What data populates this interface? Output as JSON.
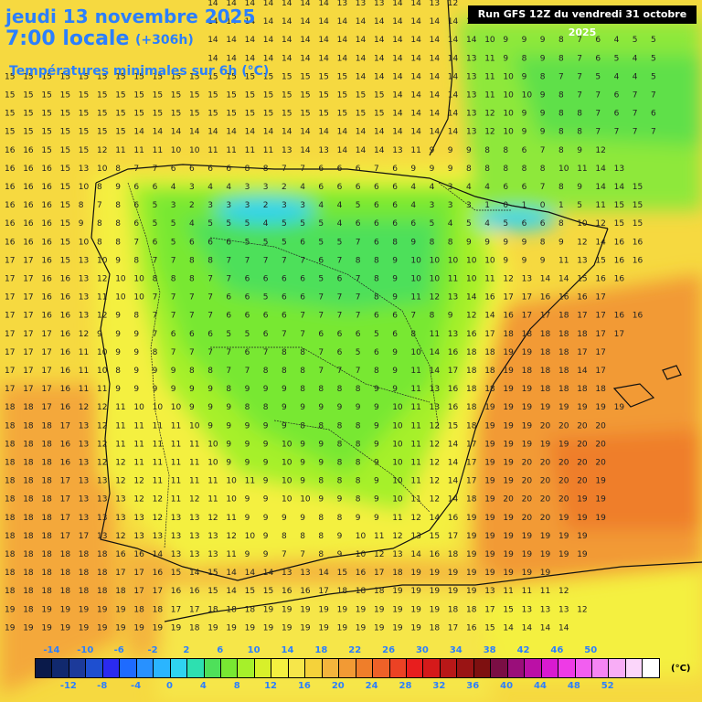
{
  "header": {
    "date": "jeudi 13 novembre 2025",
    "time": "7:00 locale",
    "offset": "(+306h)",
    "subtitle": "Températures minimales sur 6h (°C)",
    "run": "Run GFS 12Z du vendredi 31 octobre 2025"
  },
  "legend": {
    "unit": "(°C)",
    "top_labels": [
      "-14",
      "-10",
      "-6",
      "-2",
      "2",
      "6",
      "10",
      "14",
      "18",
      "22",
      "26",
      "30",
      "34",
      "38",
      "42",
      "46",
      "50"
    ],
    "bottom_labels": [
      "-12",
      "-8",
      "-4",
      "0",
      "4",
      "8",
      "12",
      "16",
      "20",
      "24",
      "28",
      "32",
      "36",
      "40",
      "44",
      "48",
      "52"
    ],
    "colors": [
      "#0a1a4a",
      "#11296e",
      "#1c3a9a",
      "#1e4fd0",
      "#2a2af0",
      "#1e6bff",
      "#2891ff",
      "#2ab5ff",
      "#2fd3f0",
      "#2de0b0",
      "#4ee05a",
      "#78e832",
      "#a6f02a",
      "#d8f02a",
      "#f4f040",
      "#f6e64a",
      "#f5d23a",
      "#f4b43c",
      "#f29a34",
      "#ef7e2a",
      "#ee6128",
      "#ec4224",
      "#e81e1e",
      "#d51a1a",
      "#b81818",
      "#9a1414",
      "#7e1010",
      "#7a0e44",
      "#9a0e7a",
      "#bb10a6",
      "#d91ad0",
      "#ee3ae6",
      "#f25ef0",
      "#f585f3",
      "#f8adf6",
      "#fbd6fa",
      "#ffffff"
    ]
  },
  "grid": {
    "rows": [
      "14 14 14 14 14 14 14 14 14 14 14 14 14 14 14 14 14 14 13 13 13 14 14 13 12 12 11 11 9 8 7 7 7 7 6 6 5 5",
      "14 14 14 14 14 14 14 14 14 14 14 14 14 14 14 14 14 14 14 14 14 14 14 14 14 12 11 9 9 9 8 6 4 7 5 6",
      "14 14 14 14 14 14 14 14 14 14 14 14 14 14 14 14 14 14 14 14 14 14 14 14 14 14 10 9 9 9 8 7 6 4 5 5",
      "15 15 15 14 14 14 14 14 14 14 14 14 14 14 14 14 14 14 14 14 14 14 14 14 14 13 11 9 8 9 8 7 6 5 4 5",
      "15 15 15 15 15 15 15 15 15 15 15 15 15 15 15 15 15 15 15 14 14 14 14 14 14 13 11 10 9 8 7 7 5 4 4 5",
      "15 15 15 15 15 15 15 15 15 15 15 15 15 15 15 15 15 15 15 15 15 14 14 14 14 13 11 10 10 9 8 7 7 6 7 7",
      "15 15 15 15 15 15 15 15 15 15 15 15 15 15 15 15 15 15 15 15 15 14 14 14 14 13 12 10 9 9 8 8 7 6 7 6",
      "15 15 15 15 15 15 15 14 14 14 14 14 14 14 14 14 14 14 14 14 14 14 14 14 14 13 12 10 9 9 8 8 7 7 7 7",
      "16 16 15 15 15 12 11 11 11 10 10 11 11 11 11 13 14 13 14 14 14 13 11 9 9 9 8 8 6 7 8 9 12",
      "16 16 16 15 13 10 8 7 7 6 6 6 6 8 8 7 7 6 6 6 7 6 9 9 9 8 8 8 8 8 10 11 14 13",
      "16 16 16 15 10 8 9 6 6 4 3 4 4 3 3 2 4 6 6 6 6 6 4 4 3 4 4 6 6 7 8 9 14 14 15",
      "16 16 16 15 8 7 8 6 5 3 2 3 3 3 2 3 3 4 4 5 6 6 4 3 3 3 1 0 1 0 1 5 11 15 15",
      "16 16 16 15 9 8 8 6 5 5 4 5 5 5 4 5 5 5 4 6 6 6 6 5 4 5 4 5 6 6 8 10 12 15 15",
      "16 16 16 15 10 8 8 7 6 5 6 6 6 5 5 5 6 5 5 7 6 8 9 8 8 9 9 9 9 8 9 12 14 16 16",
      "17 17 16 15 13 10 9 8 7 7 8 8 7 7 7 7 7 6 7 8 8 9 10 10 10 10 10 9 9 9 11 13 15 16 16",
      "17 17 16 16 13 12 10 10 8 8 8 7 7 6 6 6 6 5 6 7 8 9 10 10 11 10 11 12 13 14 14 15 16 16",
      "17 17 16 16 13 11 10 10 7 7 7 7 6 6 5 6 6 7 7 7 8 9 11 12 13 14 16 17 17 16 16 16 17",
      "17 17 16 16 13 12 9 8 7 7 7 7 6 6 6 6 7 7 7 7 6 6 7 8 9 12 14 16 17 17 18 17 17 16 16",
      "17 17 17 16 12 9 9 9 7 6 6 6 5 5 6 7 7 6 6 6 5 6 8 11 13 16 17 18 18 18 18 18 17 17",
      "17 17 17 16 11 10 9 9 8 7 7 7 7 6 7 8 8 7 6 5 6 9 10 14 16 18 18 19 19 18 18 17 17",
      "17 17 17 16 11 10 8 9 9 9 8 8 7 7 8 8 8 7 7 7 8 9 11 14 17 18 18 19 18 18 18 14 17",
      "17 17 17 16 11 11 9 9 9 9 9 9 8 9 9 9 8 8 8 8 9 9 11 13 16 18 18 19 19 18 18 18 18",
      "18 18 17 16 12 12 11 10 10 10 9 9 9 8 8 9 9 9 9 9 9 10 11 13 16 18 19 19 19 19 19 19 19 19",
      "18 18 18 17 13 12 11 11 11 11 10 9 9 9 9 9 8 8 8 8 9 10 11 12 15 18 19 19 19 20 20 20 20",
      "18 18 18 16 13 12 11 11 11 11 11 10 9 9 9 10 9 9 8 8 9 10 11 12 14 17 19 19 19 19 19 20 20",
      "18 18 18 16 13 12 12 11 11 11 11 10 9 9 9 10 9 9 8 8 9 10 11 12 14 17 19 19 20 20 20 20 20",
      "18 18 18 17 13 13 12 12 11 11 11 11 10 11 9 10 9 8 8 8 9 10 11 12 14 17 19 19 20 20 20 20 19",
      "18 18 18 17 13 13 13 12 12 11 12 11 10 9 9 10 10 9 9 8 9 10 11 12 14 18 19 20 20 20 20 19 19",
      "18 18 18 17 13 13 13 13 12 13 13 12 11 9 9 9 9 8 8 9 9 11 12 14 16 19 19 19 20 20 19 19 19",
      "18 18 18 17 17 13 12 13 13 13 13 13 12 10 9 8 8 8 9 10 11 12 13 15 17 19 19 19 19 19 19 19",
      "18 18 18 18 18 18 16 16 14 13 13 13 11 9 9 7 7 8 9 10 12 13 14 16 18 19 19 19 19 19 19 19",
      "18 18 18 18 18 18 17 17 16 15 14 15 14 14 14 13 13 14 15 16 17 18 19 19 19 19 19 19 19 19",
      "18 18 18 18 18 18 18 17 17 16 16 15 14 15 15 16 16 17 18 18 18 19 19 19 19 19 13 11 11 11 12",
      "19 18 19 19 19 19 19 18 18 17 17 18 18 18 19 19 19 19 19 19 19 19 19 19 18 18 17 15 13 13 13 12",
      "19 19 19 19 19 19 19 19 19 19 18 19 19 19 19 19 19 19 19 19 19 19 19 18 17 16 15 14 14 14 14",
      "19 19 19 19 19 19 19 19 19 19 19 19 19 19 19 19 19 19 19 19 19 19 19 19 19 19 19 19 19 19 19"
    ]
  }
}
